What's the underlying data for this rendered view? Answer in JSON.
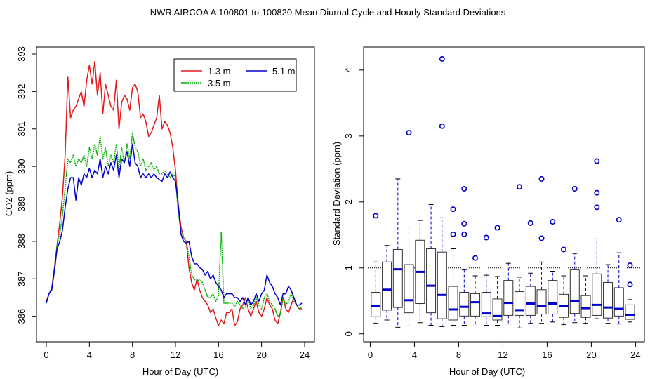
{
  "title": "NWR   AIRCOA A   100801 to 100820   Mean Diurnal Cycle and Hourly Standard Deviations",
  "colors": {
    "red": "#e31a1c",
    "green": "#00b000",
    "blue": "#0000cc",
    "axis": "#000000"
  },
  "chart_data": [
    {
      "type": "line",
      "xlabel": "Hour of Day (UTC)",
      "ylabel": "CO2 (ppm)",
      "xlim": [
        0,
        24
      ],
      "ylim": [
        385.6,
        393.0
      ],
      "xticks": [
        0,
        4,
        8,
        12,
        16,
        20,
        24
      ],
      "yticks": [
        386,
        387,
        388,
        389,
        390,
        391,
        392,
        393
      ],
      "legend_position": "top-right",
      "x": [
        0.0,
        0.25,
        0.5,
        0.75,
        1.0,
        1.25,
        1.5,
        1.75,
        2.0,
        2.25,
        2.5,
        2.75,
        3.0,
        3.25,
        3.5,
        3.75,
        4.0,
        4.25,
        4.5,
        4.75,
        5.0,
        5.25,
        5.5,
        5.75,
        6.0,
        6.25,
        6.5,
        6.75,
        7.0,
        7.25,
        7.5,
        7.75,
        8.0,
        8.25,
        8.5,
        8.75,
        9.0,
        9.25,
        9.5,
        9.75,
        10.0,
        10.25,
        10.5,
        10.75,
        11.0,
        11.25,
        11.5,
        11.75,
        12.0,
        12.25,
        12.5,
        12.75,
        13.0,
        13.25,
        13.5,
        13.75,
        14.0,
        14.25,
        14.5,
        14.75,
        15.0,
        15.25,
        15.5,
        15.75,
        16.0,
        16.25,
        16.5,
        16.75,
        17.0,
        17.25,
        17.5,
        17.75,
        18.0,
        18.25,
        18.5,
        18.75,
        19.0,
        19.25,
        19.5,
        19.75,
        20.0,
        20.25,
        20.5,
        20.75,
        21.0,
        21.25,
        21.5,
        21.75,
        22.0,
        22.25,
        22.5,
        22.75,
        23.0,
        23.25,
        23.5,
        23.75
      ],
      "series": [
        {
          "name": "1.3 m",
          "color": "#e31a1c",
          "values": [
            386.4,
            386.6,
            386.75,
            387.3,
            387.9,
            388.5,
            389.2,
            390.3,
            392.4,
            391.3,
            391.5,
            391.6,
            391.8,
            392.0,
            391.6,
            392.3,
            392.7,
            392.2,
            392.8,
            391.9,
            392.5,
            391.4,
            392.2,
            391.9,
            391.6,
            391.5,
            392.3,
            391.0,
            391.7,
            391.9,
            391.8,
            391.5,
            392.1,
            392.2,
            392.0,
            391.3,
            391.4,
            391.2,
            390.8,
            390.9,
            391.1,
            391.3,
            391.9,
            391.0,
            391.2,
            391.1,
            390.9,
            390.5,
            389.9,
            389.0,
            388.4,
            388.1,
            388.0,
            387.3,
            386.9,
            386.7,
            387.0,
            386.7,
            386.5,
            386.4,
            386.3,
            386.1,
            386.2,
            385.95,
            385.75,
            385.9,
            385.8,
            386.1,
            386.1,
            386.2,
            385.75,
            385.85,
            386.2,
            386.3,
            386.5,
            386.2,
            386.0,
            386.2,
            386.4,
            386.1,
            386.0,
            386.2,
            386.5,
            386.3,
            386.2,
            385.9,
            385.8,
            386.1,
            386.5,
            386.2,
            386.1,
            386.3,
            386.5,
            386.3,
            386.2,
            386.2
          ]
        },
        {
          "name": "3.5 m",
          "color": "#00b000",
          "values": [
            386.35,
            386.6,
            386.75,
            387.2,
            387.9,
            388.2,
            388.7,
            389.4,
            390.2,
            390.1,
            390.3,
            390.0,
            390.2,
            390.1,
            390.3,
            390.0,
            390.5,
            390.2,
            390.6,
            390.3,
            390.8,
            390.2,
            390.5,
            390.0,
            390.3,
            390.1,
            390.6,
            389.9,
            390.5,
            390.1,
            390.6,
            390.2,
            390.9,
            390.5,
            390.4,
            390.0,
            390.2,
            389.9,
            390.0,
            390.1,
            389.9,
            390.0,
            389.8,
            389.8,
            389.9,
            389.8,
            389.7,
            389.8,
            389.7,
            388.8,
            388.3,
            388.1,
            388.0,
            387.6,
            387.1,
            387.0,
            386.9,
            387.0,
            386.9,
            386.7,
            386.5,
            386.5,
            386.6,
            386.4,
            386.55,
            388.25,
            386.35,
            386.35,
            386.35,
            386.35,
            386.25,
            386.4,
            386.3,
            386.2,
            386.25,
            386.5,
            386.2,
            386.3,
            386.5,
            386.3,
            386.2,
            386.5,
            386.6,
            386.4,
            386.3,
            386.2,
            386.0,
            386.05,
            386.5,
            386.3,
            386.4,
            386.6,
            386.4,
            386.3,
            386.2,
            386.25
          ]
        },
        {
          "name": "5.1 m",
          "color": "#0000cc",
          "values": [
            386.35,
            386.6,
            386.7,
            387.2,
            387.8,
            388.0,
            388.3,
            388.9,
            389.4,
            389.7,
            389.7,
            389.1,
            389.7,
            389.5,
            389.8,
            389.7,
            389.95,
            389.7,
            389.9,
            389.8,
            390.2,
            389.7,
            390.0,
            389.8,
            390.1,
            389.9,
            390.3,
            389.7,
            390.2,
            390.1,
            390.4,
            390.0,
            390.6,
            390.1,
            390.0,
            389.7,
            389.8,
            389.7,
            389.8,
            389.7,
            389.8,
            389.7,
            389.65,
            389.6,
            389.8,
            389.7,
            389.85,
            389.7,
            389.6,
            389.0,
            388.2,
            388.0,
            387.95,
            388.0,
            387.6,
            387.4,
            387.4,
            387.3,
            387.25,
            387.1,
            387.2,
            387.0,
            387.1,
            386.9,
            386.8,
            386.7,
            386.5,
            386.6,
            386.6,
            386.6,
            386.5,
            386.5,
            386.4,
            386.5,
            386.3,
            386.5,
            386.3,
            386.4,
            386.6,
            386.4,
            386.6,
            386.7,
            387.1,
            386.9,
            386.8,
            386.6,
            386.5,
            386.3,
            386.6,
            386.6,
            386.8,
            386.7,
            386.5,
            386.3,
            386.3,
            386.35
          ]
        }
      ]
    },
    {
      "type": "box",
      "xlabel": "Hour of Day (UTC)",
      "ylabel": "Standard Deviation (ppm)",
      "xlim": [
        -0.6,
        24.8
      ],
      "ylim": [
        -0.12,
        4.35
      ],
      "xticks": [
        0,
        4,
        8,
        12,
        16,
        20,
        24
      ],
      "yticks": [
        0,
        1,
        2,
        3,
        4
      ],
      "reference_line": 1.0,
      "boxes": [
        {
          "hour": 0.5,
          "q1": 0.26,
          "median": 0.42,
          "q3": 0.63,
          "whisker_low": 0.16,
          "whisker_high": 1.09,
          "outliers": [
            1.79
          ]
        },
        {
          "hour": 1.5,
          "q1": 0.36,
          "median": 0.67,
          "q3": 1.09,
          "whisker_low": 0.21,
          "whisker_high": 1.34,
          "outliers": []
        },
        {
          "hour": 2.5,
          "q1": 0.4,
          "median": 0.98,
          "q3": 1.28,
          "whisker_low": 0.1,
          "whisker_high": 2.35,
          "outliers": []
        },
        {
          "hour": 3.5,
          "q1": 0.32,
          "median": 0.51,
          "q3": 1.05,
          "whisker_low": 0.12,
          "whisker_high": 1.62,
          "outliers": [
            3.05
          ]
        },
        {
          "hour": 4.5,
          "q1": 0.46,
          "median": 0.94,
          "q3": 1.42,
          "whisker_low": 0.17,
          "whisker_high": 1.72,
          "outliers": []
        },
        {
          "hour": 5.5,
          "q1": 0.32,
          "median": 0.73,
          "q3": 1.29,
          "whisker_low": 0.13,
          "whisker_high": 1.96,
          "outliers": []
        },
        {
          "hour": 6.5,
          "q1": 0.23,
          "median": 0.59,
          "q3": 1.24,
          "whisker_low": 0.11,
          "whisker_high": 1.76,
          "outliers": [
            3.15,
            4.17
          ]
        },
        {
          "hour": 7.5,
          "q1": 0.21,
          "median": 0.37,
          "q3": 0.72,
          "whisker_low": 0.13,
          "whisker_high": 1.29,
          "outliers": [
            1.89,
            1.51
          ]
        },
        {
          "hour": 8.5,
          "q1": 0.27,
          "median": 0.41,
          "q3": 0.63,
          "whisker_low": 0.13,
          "whisker_high": 0.98,
          "outliers": [
            2.2,
            1.67,
            1.51
          ]
        },
        {
          "hour": 9.5,
          "q1": 0.27,
          "median": 0.48,
          "q3": 0.61,
          "whisker_low": 0.15,
          "whisker_high": 0.88,
          "outliers": [
            1.15
          ]
        },
        {
          "hour": 10.5,
          "q1": 0.26,
          "median": 0.31,
          "q3": 0.63,
          "whisker_low": 0.13,
          "whisker_high": 0.89,
          "outliers": [
            1.46
          ]
        },
        {
          "hour": 11.5,
          "q1": 0.21,
          "median": 0.27,
          "q3": 0.53,
          "whisker_low": 0.13,
          "whisker_high": 0.87,
          "outliers": [
            1.61
          ]
        },
        {
          "hour": 12.5,
          "q1": 0.28,
          "median": 0.47,
          "q3": 0.81,
          "whisker_low": 0.15,
          "whisker_high": 1.07,
          "outliers": []
        },
        {
          "hour": 13.5,
          "q1": 0.28,
          "median": 0.36,
          "q3": 0.64,
          "whisker_low": 0.09,
          "whisker_high": 0.86,
          "outliers": [
            2.23
          ]
        },
        {
          "hour": 14.5,
          "q1": 0.28,
          "median": 0.46,
          "q3": 0.72,
          "whisker_low": 0.16,
          "whisker_high": 0.92,
          "outliers": [
            1.68
          ]
        },
        {
          "hour": 15.5,
          "q1": 0.3,
          "median": 0.42,
          "q3": 0.67,
          "whisker_low": 0.16,
          "whisker_high": 1.09,
          "outliers": [
            2.35,
            1.45
          ]
        },
        {
          "hour": 16.5,
          "q1": 0.3,
          "median": 0.46,
          "q3": 0.81,
          "whisker_low": 0.18,
          "whisker_high": 0.95,
          "outliers": [
            1.7
          ]
        },
        {
          "hour": 17.5,
          "q1": 0.25,
          "median": 0.42,
          "q3": 0.6,
          "whisker_low": 0.14,
          "whisker_high": 0.88,
          "outliers": [
            1.28
          ]
        },
        {
          "hour": 18.5,
          "q1": 0.31,
          "median": 0.5,
          "q3": 0.98,
          "whisker_low": 0.17,
          "whisker_high": 1.22,
          "outliers": [
            2.2
          ]
        },
        {
          "hour": 19.5,
          "q1": 0.25,
          "median": 0.39,
          "q3": 0.58,
          "whisker_low": 0.16,
          "whisker_high": 0.88,
          "outliers": []
        },
        {
          "hour": 20.5,
          "q1": 0.28,
          "median": 0.44,
          "q3": 0.91,
          "whisker_low": 0.23,
          "whisker_high": 1.44,
          "outliers": [
            2.62,
            2.14,
            1.92
          ]
        },
        {
          "hour": 21.5,
          "q1": 0.24,
          "median": 0.4,
          "q3": 0.78,
          "whisker_low": 0.16,
          "whisker_high": 1.05,
          "outliers": []
        },
        {
          "hour": 22.5,
          "q1": 0.27,
          "median": 0.38,
          "q3": 0.7,
          "whisker_low": 0.15,
          "whisker_high": 1.23,
          "outliers": [
            1.73
          ]
        },
        {
          "hour": 23.5,
          "q1": 0.22,
          "median": 0.29,
          "q3": 0.44,
          "whisker_low": 0.18,
          "whisker_high": 0.52,
          "outliers": [
            1.04,
            0.75
          ]
        }
      ]
    }
  ]
}
